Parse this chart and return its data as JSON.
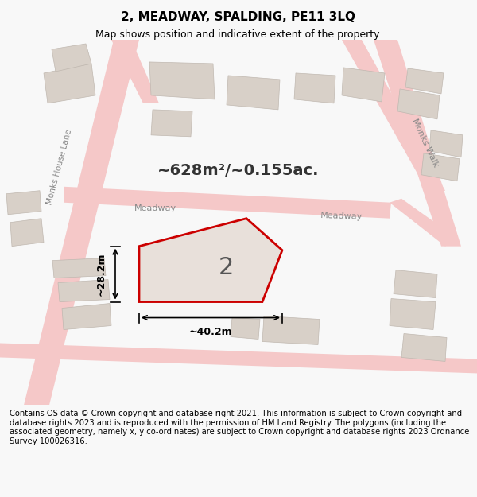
{
  "title": "2, MEADWAY, SPALDING, PE11 3LQ",
  "subtitle": "Map shows position and indicative extent of the property.",
  "area_label": "~628m²/~0.155ac.",
  "dim_h": "~28.2m",
  "dim_w": "~40.2m",
  "property_number": "2",
  "street_labels": [
    "Meadway",
    "Meadway",
    "Monks Walk",
    "Monks House Lane"
  ],
  "footer": "Contains OS data © Crown copyright and database right 2021. This information is subject to Crown copyright and database rights 2023 and is reproduced with the permission of HM Land Registry. The polygons (including the associated geometry, namely x, y co-ordinates) are subject to Crown copyright and database rights 2023 Ordnance Survey 100026316.",
  "bg_color": "#f0eeec",
  "map_bg": "#f0eeec",
  "polygon_fill": "#e8e0da",
  "polygon_edge": "#cc0000",
  "road_color": "#f5c8c8",
  "building_color": "#d8d0c8",
  "title_fontsize": 11,
  "subtitle_fontsize": 9,
  "footer_fontsize": 7.2,
  "figsize": [
    6.0,
    6.25
  ],
  "dpi": 100
}
